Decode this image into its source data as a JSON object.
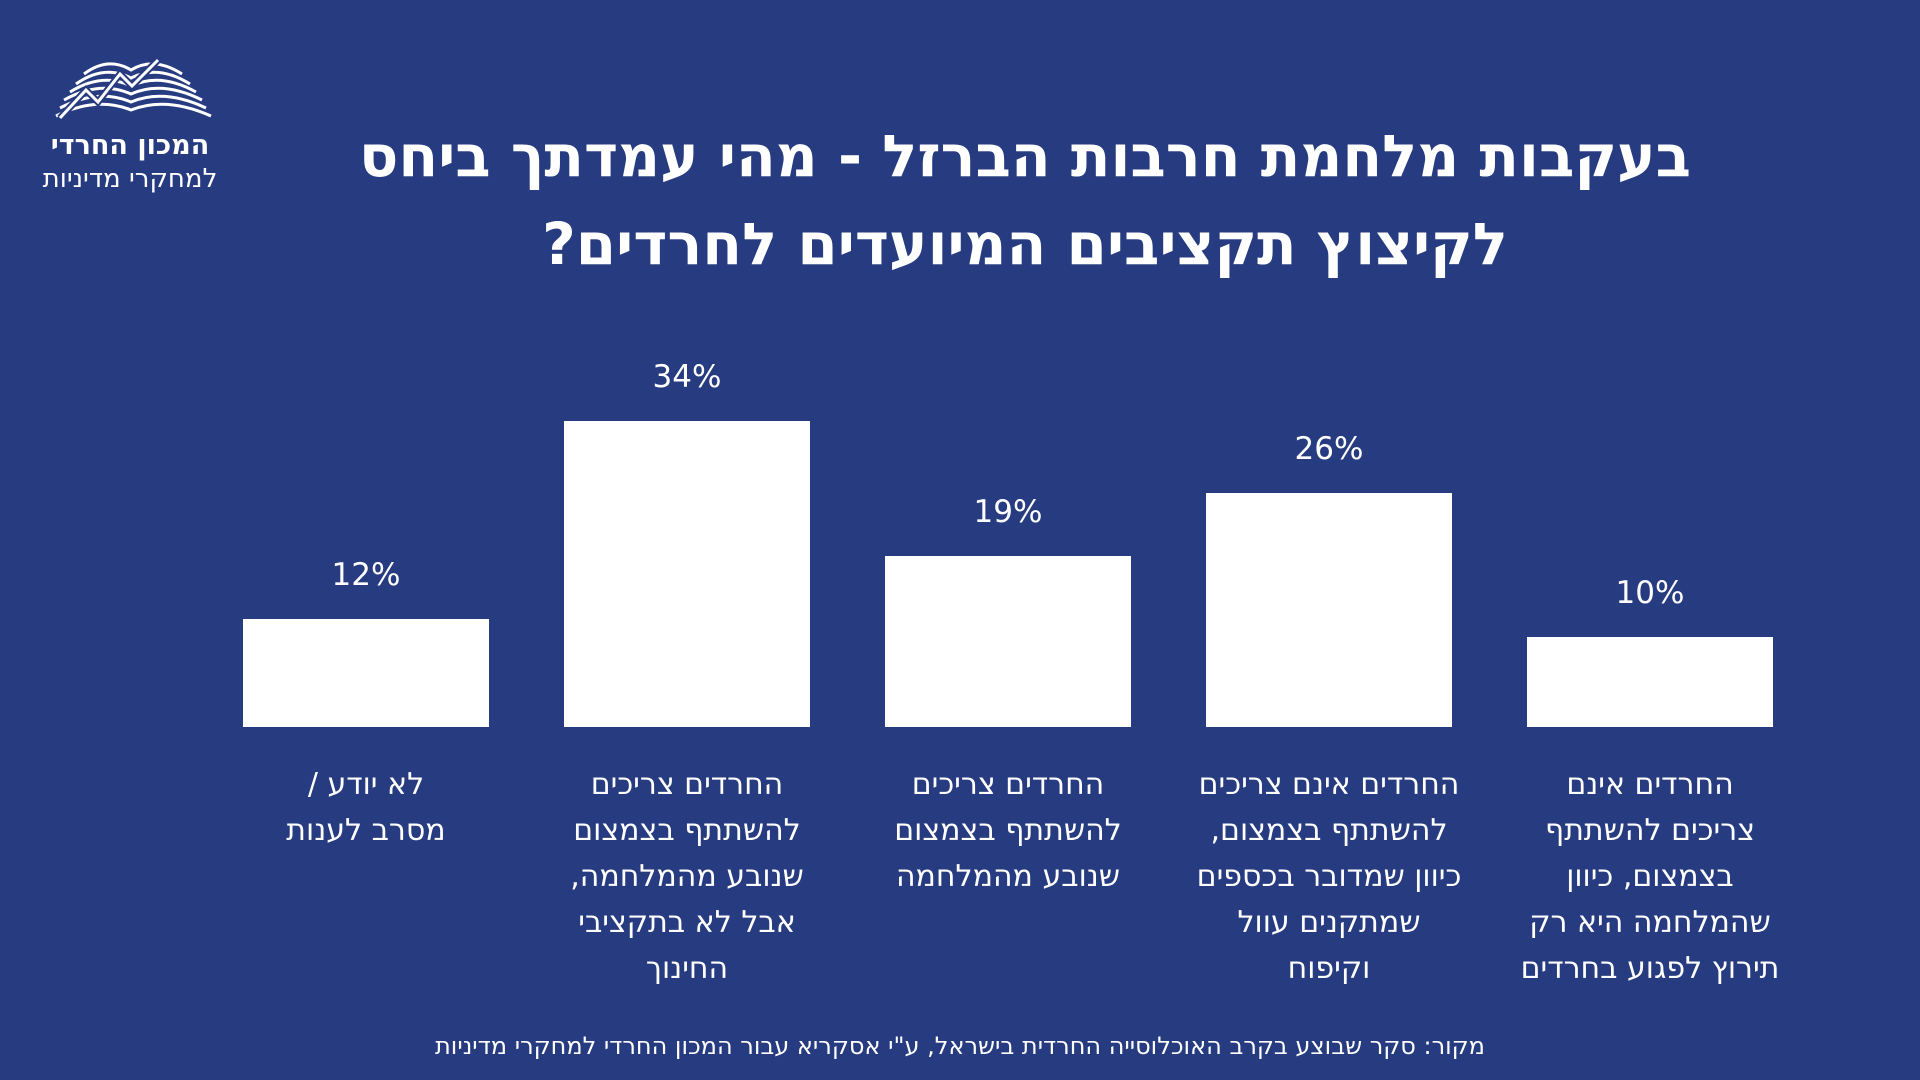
{
  "logo": {
    "name_line1": "המכון החרדי",
    "name_line2": "למחקרי מדיניות"
  },
  "chart_data": {
    "type": "bar",
    "title_lines": [
      "בעקבות מלחמת חרבות הברזל - מהי עמדתך ביחס",
      "לקיצוץ תקציבים המיועדים לחרדים?"
    ],
    "categories": [
      [
        "החרדים אינם",
        "צריכים להשתתף",
        "בצמצום, כיוון",
        "שהמלחמה היא רק",
        "תירוץ לפגוע בחרדים"
      ],
      [
        "החרדים אינם צריכים",
        "להשתתף בצמצום,",
        "כיוון שמדובר בכספים",
        "שמתקנים עוול",
        "וקיפוח"
      ],
      [
        "החרדים צריכים",
        "להשתתף בצמצום",
        "שנובע מהמלחמה"
      ],
      [
        "החרדים צריכים",
        "להשתתף בצמצום",
        "שנובע מהמלחמה,",
        "אבל לא בתקציבי",
        "החינוך"
      ],
      [
        "לא יודע /",
        "מסרב לענות"
      ]
    ],
    "values": [
      10,
      26,
      19,
      34,
      12
    ],
    "value_labels": [
      "10%",
      "26%",
      "19%",
      "34%",
      "12%"
    ],
    "ylim": [
      0,
      34
    ],
    "bar_color": "#ffffff",
    "background_color": "#263b80"
  },
  "source": "מקור: סקר שבוצע בקרב האוכלוסייה החרדית בישראל, ע\"י אסקריא עבור המכון החרדי למחקרי מדיניות"
}
